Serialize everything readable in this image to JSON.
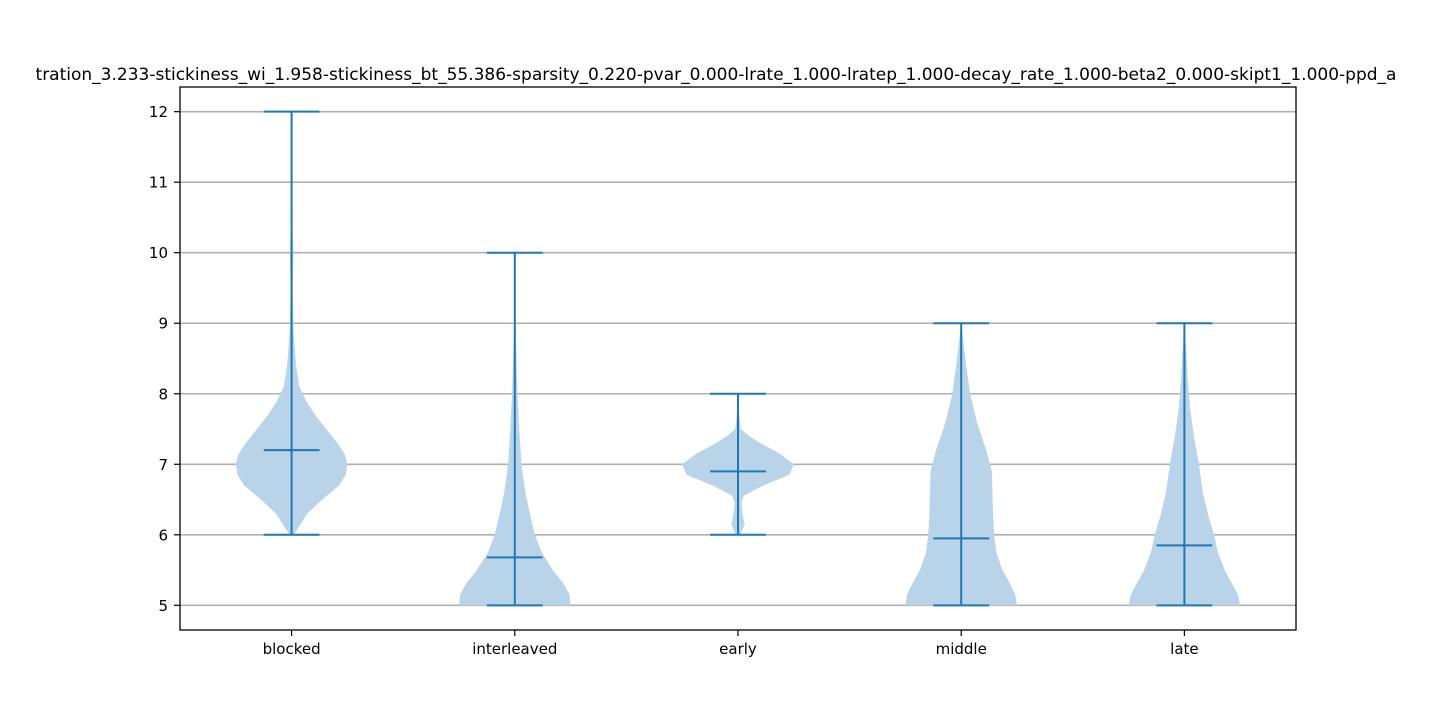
{
  "chart_data": {
    "type": "violin",
    "title": "tration_3.233-stickiness_wi_1.958-stickiness_bt_55.386-sparsity_0.220-pvar_0.000-lrate_1.000-lratep_1.000-decay_rate_1.000-beta2_0.000-skipt1_1.000-ppd_a",
    "xlabel": "",
    "ylabel": "",
    "ylim": [
      4.65,
      12.35
    ],
    "yticks": [
      5,
      6,
      7,
      8,
      9,
      10,
      11,
      12
    ],
    "grid": "horizontal",
    "color": "#1f77b4",
    "fill_color": "#b9d4e9",
    "categories": [
      "blocked",
      "interleaved",
      "early",
      "middle",
      "late"
    ],
    "series": [
      {
        "min": 6,
        "max": 12,
        "mean": 7.2,
        "density": [
          [
            6.0,
            0.04
          ],
          [
            6.1,
            0.12
          ],
          [
            6.3,
            0.28
          ],
          [
            6.5,
            0.55
          ],
          [
            6.7,
            0.85
          ],
          [
            6.85,
            0.97
          ],
          [
            7.0,
            1.0
          ],
          [
            7.15,
            0.95
          ],
          [
            7.3,
            0.82
          ],
          [
            7.5,
            0.62
          ],
          [
            7.7,
            0.42
          ],
          [
            7.9,
            0.26
          ],
          [
            8.1,
            0.14
          ],
          [
            8.4,
            0.08
          ],
          [
            8.7,
            0.05
          ],
          [
            9.0,
            0.03
          ],
          [
            9.5,
            0.02
          ],
          [
            10.0,
            0.03
          ],
          [
            10.4,
            0.015
          ],
          [
            11.0,
            0.005
          ],
          [
            12.0,
            0.0
          ]
        ]
      },
      {
        "min": 5,
        "max": 10,
        "mean": 5.68,
        "density": [
          [
            5.0,
            1.0
          ],
          [
            5.15,
            0.98
          ],
          [
            5.3,
            0.88
          ],
          [
            5.5,
            0.68
          ],
          [
            5.75,
            0.48
          ],
          [
            6.0,
            0.36
          ],
          [
            6.3,
            0.27
          ],
          [
            6.6,
            0.19
          ],
          [
            7.0,
            0.12
          ],
          [
            7.5,
            0.08
          ],
          [
            8.0,
            0.05
          ],
          [
            8.5,
            0.03
          ],
          [
            9.0,
            0.015
          ],
          [
            9.5,
            0.01
          ],
          [
            10.0,
            0.0
          ]
        ]
      },
      {
        "min": 6,
        "max": 8,
        "mean": 6.9,
        "density": [
          [
            6.0,
            0.04
          ],
          [
            6.15,
            0.12
          ],
          [
            6.3,
            0.08
          ],
          [
            6.45,
            0.06
          ],
          [
            6.55,
            0.1
          ],
          [
            6.7,
            0.45
          ],
          [
            6.85,
            0.92
          ],
          [
            7.0,
            1.0
          ],
          [
            7.15,
            0.75
          ],
          [
            7.3,
            0.4
          ],
          [
            7.4,
            0.2
          ],
          [
            7.5,
            0.05
          ],
          [
            7.8,
            0.01
          ],
          [
            8.0,
            0.0
          ]
        ]
      },
      {
        "min": 5,
        "max": 9,
        "mean": 5.95,
        "density": [
          [
            5.0,
            1.0
          ],
          [
            5.15,
            0.97
          ],
          [
            5.3,
            0.88
          ],
          [
            5.5,
            0.74
          ],
          [
            5.75,
            0.63
          ],
          [
            6.0,
            0.59
          ],
          [
            6.3,
            0.57
          ],
          [
            6.6,
            0.56
          ],
          [
            6.9,
            0.55
          ],
          [
            7.2,
            0.45
          ],
          [
            7.6,
            0.28
          ],
          [
            8.0,
            0.16
          ],
          [
            8.4,
            0.09
          ],
          [
            8.8,
            0.03
          ],
          [
            9.0,
            0.0
          ]
        ]
      },
      {
        "min": 5,
        "max": 9,
        "mean": 5.85,
        "density": [
          [
            5.0,
            1.0
          ],
          [
            5.15,
            0.96
          ],
          [
            5.3,
            0.86
          ],
          [
            5.5,
            0.72
          ],
          [
            5.75,
            0.6
          ],
          [
            6.0,
            0.53
          ],
          [
            6.3,
            0.42
          ],
          [
            6.6,
            0.33
          ],
          [
            7.0,
            0.26
          ],
          [
            7.4,
            0.17
          ],
          [
            7.8,
            0.1
          ],
          [
            8.2,
            0.06
          ],
          [
            8.6,
            0.035
          ],
          [
            9.0,
            0.0
          ]
        ]
      }
    ]
  }
}
